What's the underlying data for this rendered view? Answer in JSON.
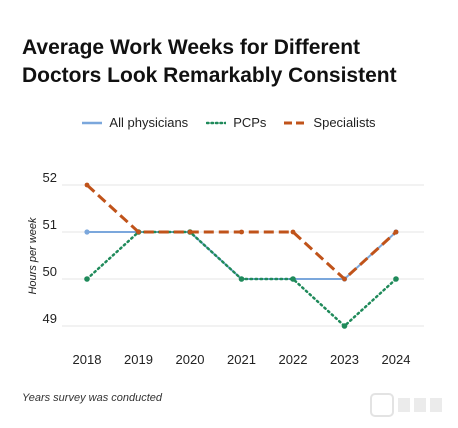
{
  "title_lines": [
    "Average Work Weeks for Different",
    "Doctors Look Remarkably Consistent"
  ],
  "caption": "Years survey was conducted",
  "chart_data": {
    "type": "line",
    "title": "Average Work Weeks for Different Doctors Look Remarkably Consistent",
    "xlabel": "Years survey was conducted",
    "ylabel": "Hours per week",
    "categories": [
      "2018",
      "2019",
      "2020",
      "2021",
      "2022",
      "2023",
      "2024"
    ],
    "yticks": [
      49,
      50,
      51,
      52
    ],
    "ylim": [
      48.8,
      52.1
    ],
    "grid": true,
    "legend_position": "top",
    "series": [
      {
        "name": "All physicians",
        "values": [
          51,
          51,
          51,
          50,
          50,
          50,
          51
        ],
        "color": "#7ba7dc",
        "style": "solid"
      },
      {
        "name": "PCPs",
        "values": [
          50,
          51,
          51,
          50,
          50,
          49,
          50
        ],
        "color": "#1f8a5a",
        "style": "dotted"
      },
      {
        "name": "Specialists",
        "values": [
          52,
          51,
          51,
          51,
          51,
          50,
          51
        ],
        "color": "#c0531a",
        "style": "dashed"
      }
    ]
  }
}
